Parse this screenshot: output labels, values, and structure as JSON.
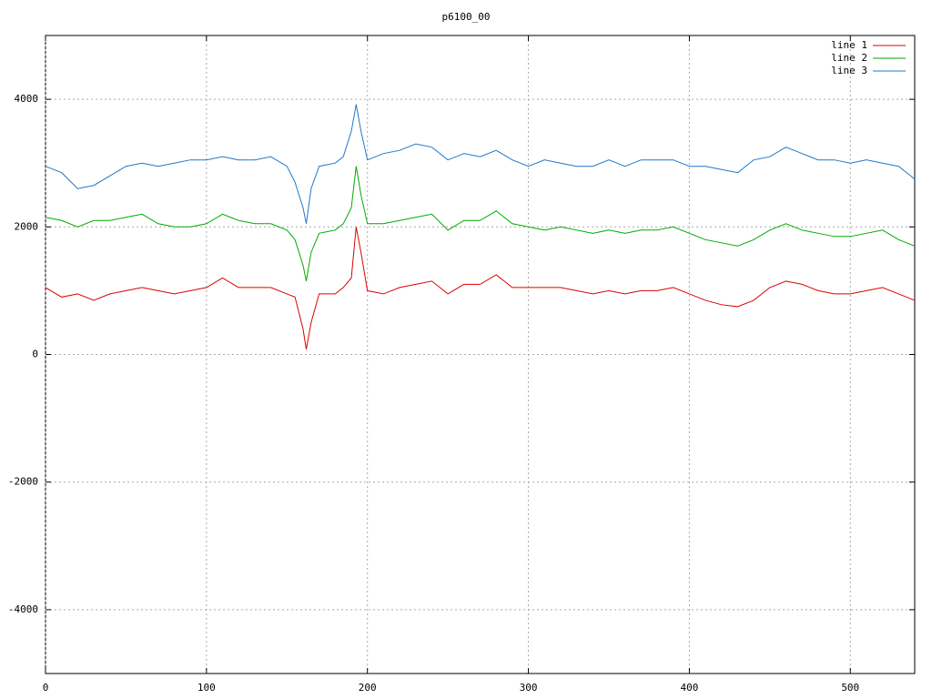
{
  "chart_data": {
    "type": "line",
    "title": "p6100_00",
    "x": [
      0,
      10,
      20,
      30,
      40,
      50,
      60,
      70,
      80,
      90,
      100,
      110,
      120,
      130,
      140,
      150,
      155,
      160,
      162,
      165,
      170,
      180,
      185,
      190,
      193,
      196,
      200,
      210,
      220,
      230,
      240,
      250,
      260,
      270,
      280,
      290,
      300,
      310,
      320,
      330,
      340,
      350,
      360,
      370,
      380,
      390,
      400,
      410,
      420,
      430,
      440,
      450,
      460,
      470,
      480,
      490,
      500,
      510,
      520,
      530,
      540
    ],
    "series": [
      {
        "name": "line 1",
        "color": "#dd0000",
        "values": [
          1050,
          900,
          950,
          850,
          950,
          1000,
          1050,
          1000,
          950,
          1000,
          1050,
          1200,
          1050,
          1050,
          1050,
          950,
          900,
          400,
          80,
          500,
          950,
          950,
          1050,
          1200,
          2000,
          1600,
          1000,
          950,
          1050,
          1100,
          1150,
          950,
          1100,
          1100,
          1250,
          1050,
          1050,
          1050,
          1050,
          1000,
          950,
          1000,
          950,
          1000,
          1000,
          1050,
          950,
          850,
          780,
          750,
          850,
          1050,
          1150,
          1100,
          1000,
          950,
          950,
          1000,
          1050,
          950,
          850
        ]
      },
      {
        "name": "line 2",
        "color": "#00aa00",
        "values": [
          2150,
          2100,
          2000,
          2100,
          2100,
          2150,
          2200,
          2050,
          2000,
          2000,
          2050,
          2200,
          2100,
          2050,
          2050,
          1950,
          1800,
          1400,
          1150,
          1600,
          1900,
          1950,
          2050,
          2300,
          2950,
          2500,
          2050,
          2050,
          2100,
          2150,
          2200,
          1950,
          2100,
          2100,
          2250,
          2050,
          2000,
          1950,
          2000,
          1950,
          1900,
          1950,
          1900,
          1950,
          1950,
          2000,
          1900,
          1800,
          1750,
          1700,
          1800,
          1950,
          2050,
          1950,
          1900,
          1850,
          1850,
          1900,
          1950,
          1800,
          1700
        ]
      },
      {
        "name": "line 3",
        "color": "#1f78c8",
        "values": [
          2950,
          2850,
          2600,
          2650,
          2800,
          2950,
          3000,
          2950,
          3000,
          3050,
          3050,
          3100,
          3050,
          3050,
          3100,
          2950,
          2700,
          2300,
          2050,
          2600,
          2950,
          3000,
          3100,
          3500,
          3920,
          3500,
          3050,
          3150,
          3200,
          3300,
          3250,
          3050,
          3150,
          3100,
          3200,
          3050,
          2950,
          3050,
          3000,
          2950,
          2950,
          3050,
          2950,
          3050,
          3050,
          3050,
          2950,
          2950,
          2900,
          2850,
          3050,
          3100,
          3250,
          3150,
          3050,
          3050,
          3000,
          3050,
          3000,
          2950,
          2750
        ]
      }
    ],
    "xlim": [
      0,
      540
    ],
    "ylim": [
      -5000,
      5000
    ],
    "xticks": [
      0,
      100,
      200,
      300,
      400,
      500
    ],
    "yticks": [
      -4000,
      -2000,
      0,
      2000,
      4000
    ],
    "grid": true,
    "legend": "top-right"
  }
}
